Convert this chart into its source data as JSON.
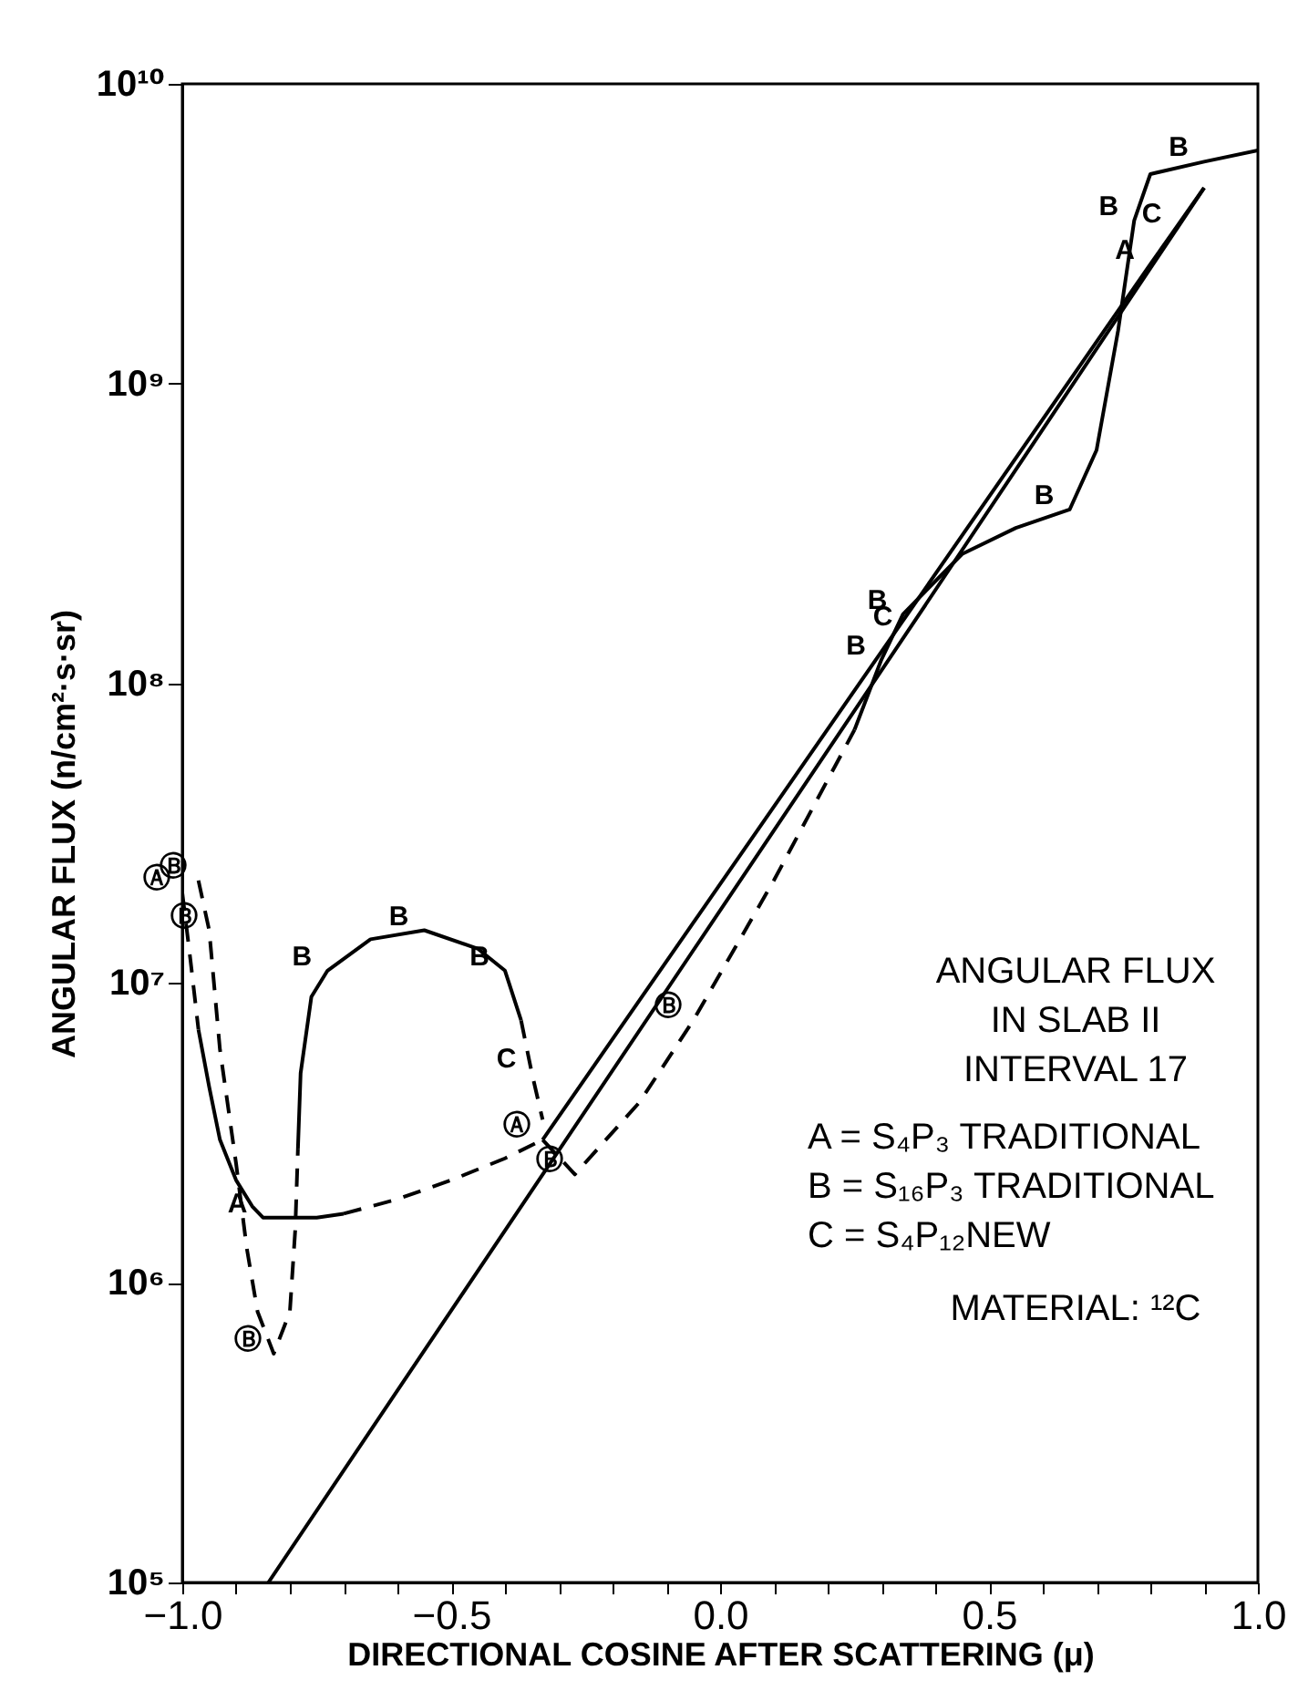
{
  "chart_data": {
    "type": "line",
    "xlabel": "DIRECTIONAL COSINE AFTER SCATTERING (μ)",
    "ylabel": "ANGULAR FLUX (n/cm²·s·sr)",
    "log": "y",
    "grid": false,
    "marker": "none",
    "xlim": [
      -1.0,
      1.0
    ],
    "xticks": [
      {
        "value": -1.0,
        "label": "−1.0"
      },
      {
        "value": -0.9,
        "label": null
      },
      {
        "value": -0.8,
        "label": null
      },
      {
        "value": -0.7,
        "label": null
      },
      {
        "value": -0.6,
        "label": null
      },
      {
        "value": -0.5,
        "label": "−0.5"
      },
      {
        "value": -0.4,
        "label": null
      },
      {
        "value": -0.3,
        "label": null
      },
      {
        "value": -0.2,
        "label": null
      },
      {
        "value": -0.1,
        "label": null
      },
      {
        "value": 0,
        "label": "0.0"
      },
      {
        "value": 0.1,
        "label": null
      },
      {
        "value": 0.2,
        "label": null
      },
      {
        "value": 0.3,
        "label": null
      },
      {
        "value": 0.4,
        "label": null
      },
      {
        "value": 0.5,
        "label": "0.5"
      },
      {
        "value": 0.6,
        "label": null
      },
      {
        "value": 0.7,
        "label": null
      },
      {
        "value": 0.8,
        "label": null
      },
      {
        "value": 0.9,
        "label": null
      },
      {
        "value": 1.0,
        "label": "1.0"
      }
    ],
    "ylim": [
      100000,
      10000000000
    ],
    "yticks": [
      {
        "value": 100000,
        "label": "10⁵"
      },
      {
        "value": 1000000,
        "label": "10⁶"
      },
      {
        "value": 10000000,
        "label": "10⁷"
      },
      {
        "value": 100000000,
        "label": "10⁸"
      },
      {
        "value": 1000000000,
        "label": "10⁹"
      },
      {
        "value": 10000000000,
        "label": "10¹⁰"
      }
    ],
    "series": [
      {
        "color": "#000000",
        "line_style": "dashed",
        "x": [
          -1.0,
          -0.985,
          -0.97
        ],
        "values": [
          20000000,
          12000000,
          7000000
        ]
      },
      {
        "color": "#000000",
        "line_style": "solid",
        "x": [
          -0.97,
          -0.95,
          -0.93,
          -0.9,
          -0.87,
          -0.85,
          -0.8,
          -0.75,
          -0.7
        ],
        "values": [
          7000000,
          4500000,
          3000000,
          2200000,
          1800000,
          1650000,
          1650000,
          1650000,
          1700000
        ]
      },
      {
        "color": "#000000",
        "line_style": "dashed",
        "x": [
          -0.7,
          -0.6,
          -0.5,
          -0.4,
          -0.33
        ],
        "values": [
          1700000,
          1900000,
          2200000,
          2600000,
          3000000
        ]
      },
      {
        "color": "#000000",
        "line_style": "solid",
        "x": [
          -0.33,
          0.8,
          0.9
        ],
        "values": [
          3000000,
          2500000000,
          4500000000
        ]
      },
      {
        "color": "#000000",
        "line_style": "solid",
        "x": [
          -0.84,
          0.35,
          0.85,
          0.9
        ],
        "values": [
          100000,
          150000000,
          3300000000,
          4500000000
        ]
      },
      {
        "color": "#000000",
        "line_style": "dashed",
        "x": [
          -0.97,
          -0.95,
          -0.93,
          -0.9,
          -0.88,
          -0.86,
          -0.83,
          -0.8,
          -0.79,
          -0.785
        ],
        "values": [
          22000000,
          15000000,
          6000000,
          2500000,
          1300000,
          800000,
          580000,
          800000,
          1500000,
          2800000
        ]
      },
      {
        "color": "#000000",
        "line_style": "solid",
        "x": [
          -0.785,
          -0.78,
          -0.76,
          -0.73,
          -0.65,
          -0.55,
          -0.45,
          -0.4,
          -0.37
        ],
        "values": [
          2800000,
          5000000,
          9000000,
          11000000,
          14000000,
          15000000,
          13000000,
          11000000,
          7500000
        ]
      },
      {
        "color": "#000000",
        "line_style": "dashed",
        "x": [
          -0.37,
          -0.35,
          -0.33
        ],
        "values": [
          7500000,
          5000000,
          3500000
        ]
      },
      {
        "color": "#000000",
        "line_style": "dashed",
        "x": [
          -0.33,
          -0.27,
          -0.15,
          -0.05,
          0.1,
          0.25
        ],
        "values": [
          3000000,
          2300000,
          4000000,
          7500000,
          22000000,
          70000000
        ]
      },
      {
        "color": "#000000",
        "line_style": "solid",
        "x": [
          0.25,
          0.3,
          0.34,
          0.45,
          0.55,
          0.65,
          0.7,
          0.74,
          0.77,
          0.8,
          0.9,
          1.0
        ],
        "values": [
          70000000,
          120000000,
          170000000,
          270000000,
          330000000,
          380000000,
          600000000,
          1500000000,
          3500000000,
          5000000000,
          5500000000,
          6000000000
        ]
      }
    ],
    "annotations": [
      {
        "text": "Ⓐ",
        "x": -1.0,
        "y": 20000000
      },
      {
        "text": "Ⓑ",
        "x": -0.97,
        "y": 22000000
      },
      {
        "text": "Ⓑ",
        "x": -0.95,
        "y": 15000000
      },
      {
        "text": "A",
        "x": -0.85,
        "y": 1650000
      },
      {
        "text": "Ⓑ",
        "x": -0.83,
        "y": 580000
      },
      {
        "text": "B",
        "x": -0.73,
        "y": 11000000
      },
      {
        "text": "B",
        "x": -0.55,
        "y": 15000000
      },
      {
        "text": "B",
        "x": -0.4,
        "y": 11000000
      },
      {
        "text": "C",
        "x": -0.35,
        "y": 5000000
      },
      {
        "text": "Ⓐ",
        "x": -0.33,
        "y": 3000000
      },
      {
        "text": "Ⓑ",
        "x": -0.27,
        "y": 2300000
      },
      {
        "text": "Ⓑ",
        "x": -0.05,
        "y": 7500000
      },
      {
        "text": "B",
        "x": 0.3,
        "y": 120000000
      },
      {
        "text": "B",
        "x": 0.34,
        "y": 170000000
      },
      {
        "text": "C",
        "x": 0.35,
        "y": 150000000
      },
      {
        "text": "B",
        "x": 0.65,
        "y": 380000000
      },
      {
        "text": "B",
        "x": 0.77,
        "y": 3500000000
      },
      {
        "text": "A",
        "x": 0.8,
        "y": 2500000000
      },
      {
        "text": "C",
        "x": 0.85,
        "y": 3300000000
      },
      {
        "text": "B",
        "x": 0.9,
        "y": 5500000000
      },
      "ANGULAR FLUX",
      "IN SLAB II",
      "INTERVAL 17",
      "A = S₄P₃ TRADITIONAL",
      "B = S₁₆P₃ TRADITIONAL",
      "C = S₄P₁₂NEW",
      "MATERIAL: ¹²C"
    ]
  }
}
